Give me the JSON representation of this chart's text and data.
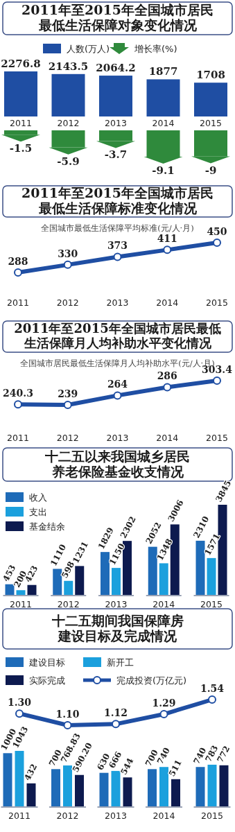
{
  "chart_data": [
    {
      "type": "bar",
      "title": "2011年至2015年全国城市居民最低生活保障对象变化情况",
      "categories": [
        "2011",
        "2012",
        "2013",
        "2014",
        "2015"
      ],
      "legend": "top",
      "data_labels": true,
      "series": [
        {
          "name": "人数(万人)",
          "color": "#1f4ea3",
          "values": [
            2276.8,
            2143.5,
            2064.2,
            1877,
            1708
          ]
        }
      ]
    },
    {
      "type": "bar",
      "categories": [
        "2011",
        "2012",
        "2013",
        "2014",
        "2015"
      ],
      "legend": "top",
      "data_labels": true,
      "tick_labels": false,
      "series": [
        {
          "name": "增长率(%)",
          "color": "#2f8a3c",
          "values": [
            -1.5,
            -5.9,
            -3.7,
            -9.1,
            -9
          ]
        }
      ]
    },
    {
      "type": "line",
      "title": "2011年至2015年全国城市居民最低生活保障标准变化情况",
      "subtitle": "全国城市最低生活保障平均标准(元/人·月)",
      "categories": [
        "2011",
        "2012",
        "2013",
        "2014",
        "2015"
      ],
      "marker": "circle",
      "data_labels": true,
      "series": [
        {
          "color": "#1f4ea3",
          "values": [
            288,
            330,
            373,
            411,
            450
          ]
        }
      ]
    },
    {
      "type": "line",
      "title": "2011年至2015年全国城市居民最低生活保障月人均补助水平变化情况",
      "subtitle": "全国城市居民最低生活保障月人均补助水平(元/人·月)",
      "categories": [
        "2011",
        "2012",
        "2013",
        "2014",
        "2015"
      ],
      "marker": "circle",
      "data_labels": true,
      "series": [
        {
          "color": "#1f4ea3",
          "values": [
            240.3,
            239,
            264,
            286,
            303.4
          ]
        }
      ]
    },
    {
      "type": "bar",
      "title": "十二五以来我国城乡居民养老保险基金收支情况",
      "categories": [
        "2011",
        "2012",
        "2013",
        "2014",
        "2015"
      ],
      "legend": "top left",
      "data_labels": true,
      "series": [
        {
          "name": "收入",
          "color": "#1e6bb8",
          "values": [
            453,
            1110,
            1829,
            2052,
            2310
          ]
        },
        {
          "name": "支出",
          "color": "#1ba0dd",
          "values": [
            200,
            598,
            1150,
            1348,
            1571
          ]
        },
        {
          "name": "基金结余",
          "color": "#0d1a4f",
          "values": [
            423,
            1231,
            2302,
            3006,
            3845
          ]
        }
      ]
    },
    {
      "type": "line",
      "title": "十二五期间我国保障房建设目标及完成情况",
      "categories": [
        "2011",
        "2012",
        "2013",
        "2014",
        "2015"
      ],
      "legend": "top",
      "tick_labels": false,
      "marker": "circle",
      "series": [
        {
          "name": "完成投资(万亿元)",
          "color": "#1f4ea3",
          "values": [
            1.3,
            1.1,
            1.12,
            1.29,
            1.54
          ],
          "value_labels": [
            "1.30",
            "1.10",
            "1.12",
            "1.29",
            "1.54"
          ]
        }
      ]
    },
    {
      "type": "bar",
      "categories": [
        "2011",
        "2012",
        "2013",
        "2014",
        "2015"
      ],
      "legend": "top left",
      "data_labels": true,
      "series": [
        {
          "name": "建设目标",
          "color": "#1e6bb8",
          "values": [
            1000,
            700,
            630,
            700,
            740
          ]
        },
        {
          "name": "新开工",
          "color": "#1ba0dd",
          "values": [
            1043,
            768.83,
            666,
            740,
            783
          ],
          "value_labels": [
            "1043",
            "768.83",
            "666",
            "740",
            "783"
          ]
        },
        {
          "name": "实际完成",
          "color": "#0d1a4f",
          "values": [
            432,
            590.2,
            544,
            511,
            772
          ],
          "value_labels": [
            "432",
            "590.20",
            "544",
            "511",
            "772"
          ]
        }
      ]
    }
  ]
}
